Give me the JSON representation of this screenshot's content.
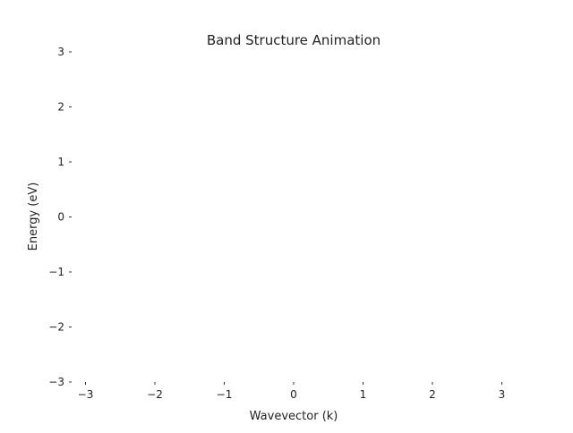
{
  "chart_data": {
    "type": "line",
    "title": "Band Structure Animation",
    "xlabel": "Wavevector (k)",
    "ylabel": "Energy (eV)",
    "xlim": [
      -3.2,
      3.2
    ],
    "ylim": [
      -3,
      3
    ],
    "xticks": [
      -3,
      -2,
      -1,
      0,
      1,
      2,
      3
    ],
    "yticks": [
      -3,
      -2,
      -1,
      0,
      1,
      2,
      3
    ],
    "xtick_labels": [
      "−3",
      "−2",
      "−1",
      "0",
      "1",
      "2",
      "3"
    ],
    "ytick_labels": [
      "−3",
      "−2",
      "−1",
      "0",
      "1",
      "2",
      "3"
    ],
    "grid": false,
    "series": []
  }
}
